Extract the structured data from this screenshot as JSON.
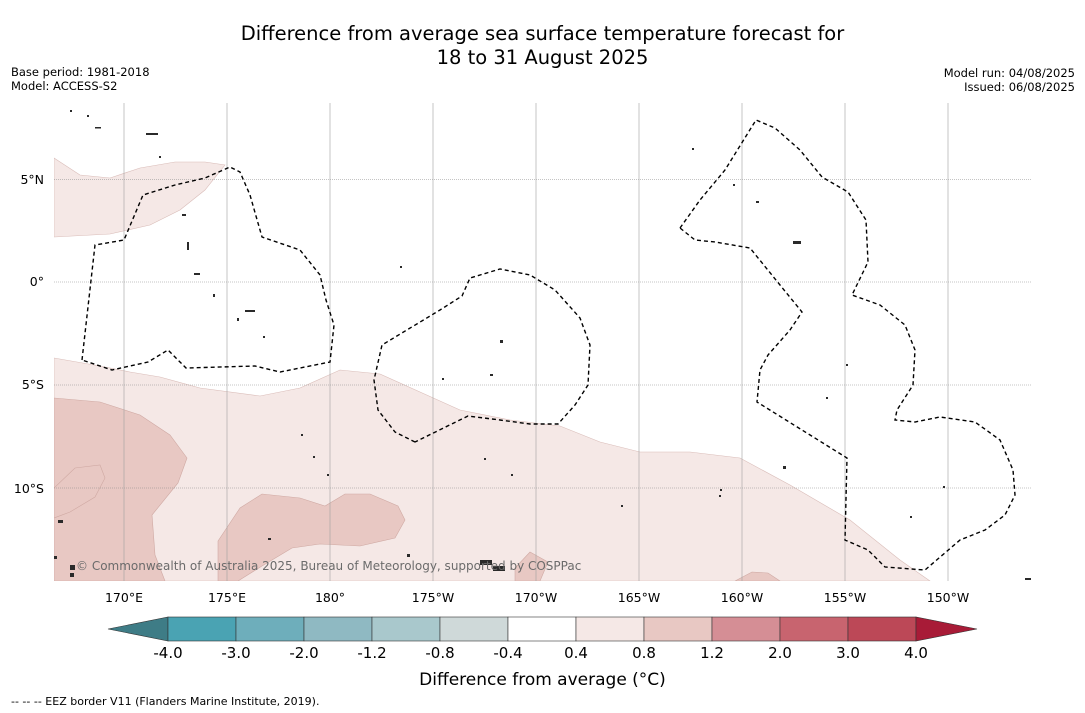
{
  "title": {
    "line1": "Difference from average sea surface temperature forecast for",
    "line2": "18 to 31 August 2025"
  },
  "meta_left": {
    "base_period": "Base period: 1981-2018",
    "model": "Model: ACCESS-S2"
  },
  "meta_right": {
    "model_run": "Model run: 04/08/2025",
    "issued": "Issued: 06/08/2025"
  },
  "map": {
    "lat_labels": [
      "5°N",
      "0°",
      "5°S",
      "10°S"
    ],
    "lon_labels": [
      "170°E",
      "175°E",
      "180°",
      "175°W",
      "170°W",
      "165°W",
      "160°W",
      "155°W",
      "150°W"
    ],
    "copyright": "© Commonwealth of Australia 2025, Bureau of Meteorology, supported by COSPPac",
    "colors": {
      "anomaly_0_4_to_0_8": "#f5e8e6",
      "anomaly_0_8_to_1_2": "#e8c8c3",
      "land": "#3a3a3a",
      "eez_border": "#000000"
    }
  },
  "colorbar": {
    "tick_labels": [
      "-4.0",
      "-3.0",
      "-2.0",
      "-1.2",
      "-0.8",
      "-0.4",
      "0.4",
      "0.8",
      "1.2",
      "2.0",
      "3.0",
      "4.0"
    ],
    "colors": [
      "#3e7c86",
      "#4aa3b3",
      "#6eaebb",
      "#8fb9c2",
      "#a9c8cc",
      "#cfd9d9",
      "#ffffff",
      "#f5e8e6",
      "#e8c8c3",
      "#d58e95",
      "#c8646f",
      "#bc4857",
      "#a81b37"
    ],
    "title": "Difference from average (°C)"
  },
  "footer": "-- -- -- EEZ border V11 (Flanders Marine Institute, 2019)."
}
